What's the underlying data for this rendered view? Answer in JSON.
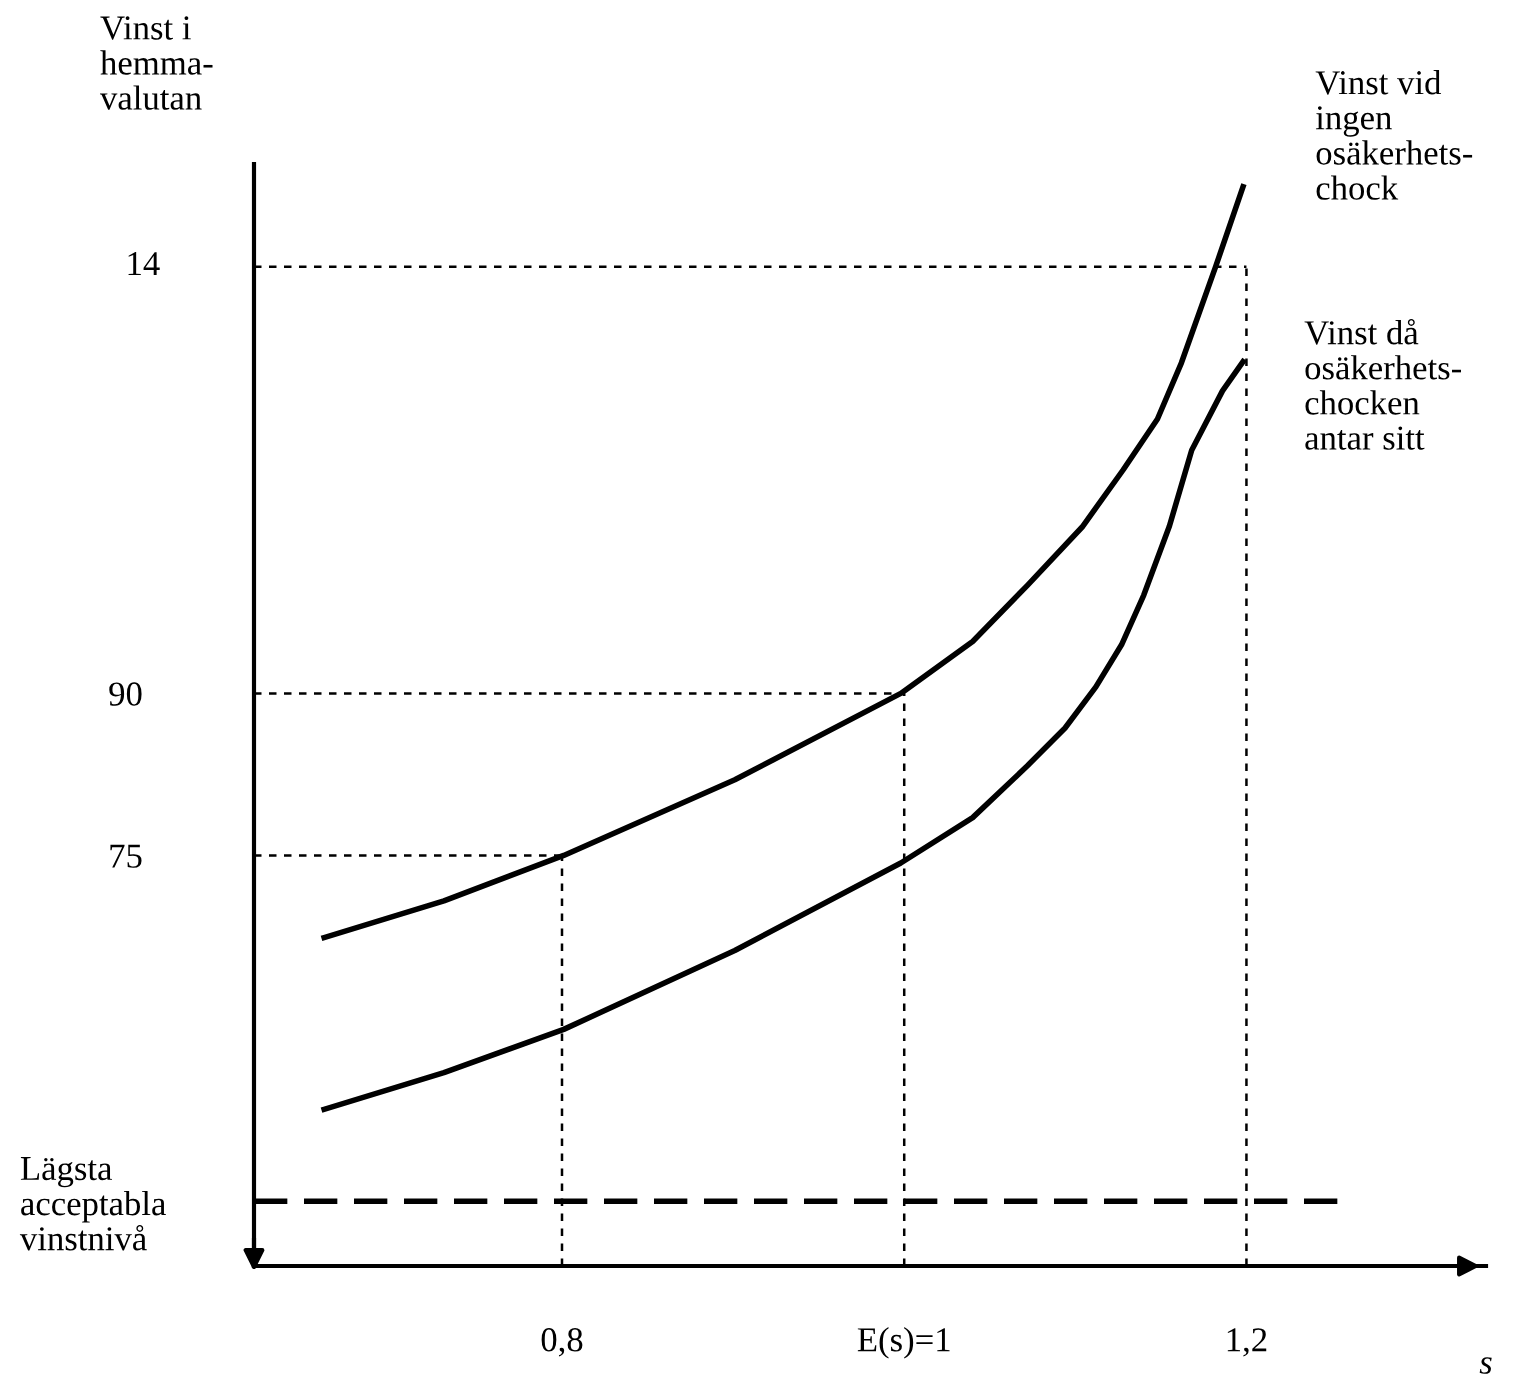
{
  "chart_data": {
    "type": "line",
    "ylabel": "Vinst i\nhemma-\nvalutan",
    "xlabel": "s",
    "xlim": [
      0.62,
      1.34
    ],
    "ylim": [
      37,
      139
    ],
    "xticks": [
      {
        "value": 0.8,
        "label": "0,8"
      },
      {
        "value": 1.0,
        "label": "E(s)=1"
      },
      {
        "value": 1.2,
        "label": "1,2"
      }
    ],
    "yticks": [
      75,
      90
    ],
    "annotations": [
      "14"
    ],
    "grid": false,
    "legend": false,
    "marker": "none",
    "line_style": "solid",
    "series": [
      {
        "name": "Vinst vid\ningen\nosäkerhets-\nchock",
        "color": "#000000",
        "x": [
          0.661,
          0.731,
          0.801,
          0.901,
          0.998,
          1.04,
          1.072,
          1.104,
          1.128,
          1.148,
          1.162,
          1.182,
          1.198
        ],
        "values": [
          67.4,
          70.8,
          75,
          82.0,
          90,
          94.8,
          100.0,
          105.4,
          110.7,
          115.4,
          120.6,
          129.5,
          136.9
        ]
      },
      {
        "name": "Vinst då\nosäkerhets-\nchocken\nantar sitt",
        "color": "#000000",
        "x": [
          0.661,
          0.731,
          0.801,
          0.901,
          0.998,
          1.04,
          1.072,
          1.094,
          1.112,
          1.127,
          1.14,
          1.155,
          1.168,
          1.186,
          1.198
        ],
        "values": [
          51.5,
          54.9,
          58.9,
          66.2,
          74.3,
          78.5,
          83.3,
          86.8,
          90.6,
          94.5,
          99.1,
          105.5,
          112.5,
          118,
          120.7
        ]
      }
    ],
    "ref_lines": [
      {
        "axis": "y",
        "value": 43,
        "label": "Lägsta\nacceptabla\nvinstnivå",
        "line_style": "dashed",
        "color": "#000000"
      },
      {
        "axis": "y",
        "value": 75,
        "line_style": "dotted",
        "color": "#000000"
      },
      {
        "axis": "y",
        "value": 90,
        "line_style": "dotted",
        "color": "#000000"
      },
      {
        "axis": "y",
        "value": 129.5,
        "line_style": "dotted",
        "color": "#000000"
      },
      {
        "axis": "x",
        "value": 0.8,
        "line_style": "dotted",
        "color": "#000000"
      },
      {
        "axis": "x",
        "value": 1.0,
        "line_style": "dotted",
        "color": "#000000"
      },
      {
        "axis": "x",
        "value": 1.2,
        "line_style": "dotted",
        "color": "#000000"
      }
    ]
  }
}
